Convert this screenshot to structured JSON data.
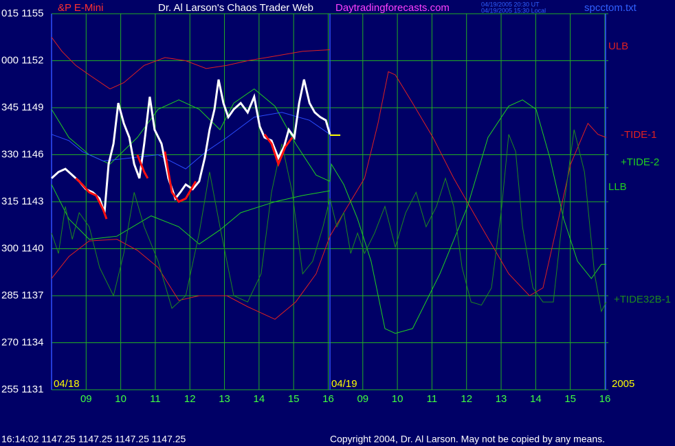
{
  "header": {
    "instrument": "&P E-Mini",
    "title": "Dr. Al Larson's Chaos Trader Web",
    "site": "Daytradingforecasts.com",
    "timestamp_ut": "04/19/2005 20:30 UT",
    "timestamp_local": "04/19/2005 15:30 Local",
    "file": "spcctom.txt"
  },
  "footer": {
    "status": "16:14:02  1147.25 1147.25 1147.25 1147.25",
    "copyright": "Copyright 2004, Dr. Al Larson. May not be copied by any means."
  },
  "chart_data": {
    "type": "line",
    "grid": true,
    "xlim": [
      8,
      24.1
    ],
    "ylim": [
      1131,
      1155
    ],
    "yticks": [
      {
        "value": 1155,
        "label": "015 1155"
      },
      {
        "value": 1152,
        "label": "000 1152"
      },
      {
        "value": 1149,
        "label": "345 1149"
      },
      {
        "value": 1146,
        "label": "330 1146"
      },
      {
        "value": 1143,
        "label": "315 1143"
      },
      {
        "value": 1140,
        "label": "300 1140"
      },
      {
        "value": 1137,
        "label": "285 1137"
      },
      {
        "value": 1134,
        "label": "270 1134"
      },
      {
        "value": 1131,
        "label": "255 1131"
      }
    ],
    "xticks": [
      {
        "value": 9,
        "label": "09"
      },
      10,
      11,
      12,
      13,
      14,
      15,
      16,
      {
        "value": 17,
        "label": "09"
      },
      {
        "value": 18,
        "label": "10"
      },
      {
        "value": 19,
        "label": "11"
      },
      {
        "value": 20,
        "label": "12"
      },
      {
        "value": 21,
        "label": "13"
      },
      {
        "value": 22,
        "label": "14"
      },
      {
        "value": 23,
        "label": "15"
      },
      {
        "value": 24,
        "label": "16"
      }
    ],
    "day_breaks": [
      8,
      16.05,
      24.02
    ],
    "annotations": [
      "04/18",
      "04/19",
      "2005"
    ],
    "series": [
      {
        "name": "ULB",
        "color": "#e02020",
        "x": [
          8.0,
          8.3,
          8.7,
          9.09,
          9.69,
          10.09,
          10.68,
          11.28,
          11.88,
          12.47,
          13.07,
          13.67,
          14.46,
          15.26,
          16.05
        ],
        "values": [
          1153.5,
          1152.6,
          1151.7,
          1151.1,
          1150.2,
          1150.6,
          1151.7,
          1152.2,
          1152.0,
          1151.5,
          1151.7,
          1152.0,
          1152.3,
          1152.6,
          1152.7
        ]
      },
      {
        "name": "-TIDE-1",
        "color": "#e02020",
        "x": [
          8.0,
          8.5,
          9.09,
          9.89,
          10.48,
          11.08,
          11.68,
          12.27,
          13.07,
          13.67,
          14.46,
          15.06,
          15.65,
          16.05,
          16.45,
          17.05,
          17.44,
          17.74,
          17.94,
          18.44,
          19.03,
          19.63,
          20.43,
          21.22,
          21.82,
          22.21,
          22.61,
          23.01,
          23.51,
          23.8,
          24.04
        ],
        "values": [
          1138.1,
          1139.5,
          1140.5,
          1140.6,
          1139.9,
          1138.8,
          1136.7,
          1137.0,
          1137.0,
          1136.3,
          1135.5,
          1136.6,
          1138.4,
          1140.8,
          1142.3,
          1144.5,
          1148.0,
          1151.3,
          1151.1,
          1149.3,
          1147.1,
          1144.5,
          1141.4,
          1138.4,
          1137.0,
          1137.5,
          1141.4,
          1145.4,
          1148.0,
          1147.3,
          1147.1
        ]
      },
      {
        "name": "+TIDE-2",
        "color": "#20d020",
        "x": [
          8.0,
          8.5,
          9.09,
          9.69,
          10.48,
          11.08,
          11.68,
          12.27,
          12.87,
          13.27,
          13.86,
          14.46,
          15.06,
          15.65,
          16.05,
          16.09,
          16.45,
          16.85,
          17.24,
          17.64,
          17.94,
          18.44,
          19.23,
          20.03,
          20.62,
          21.22,
          21.62,
          22.01,
          22.41,
          22.81,
          23.21,
          23.61,
          23.9,
          24.04
        ],
        "values": [
          1148.9,
          1147.1,
          1146.0,
          1145.4,
          1147.1,
          1148.9,
          1149.5,
          1148.9,
          1147.6,
          1149.3,
          1150.2,
          1149.1,
          1146.7,
          1144.7,
          1144.3,
          1145.4,
          1144.1,
          1141.9,
          1139.2,
          1134.9,
          1134.6,
          1134.9,
          1138.4,
          1142.7,
          1147.1,
          1149.1,
          1149.5,
          1148.9,
          1145.8,
          1141.9,
          1139.2,
          1138.1,
          1139.0,
          1139.0
        ]
      },
      {
        "name": "LLB",
        "color": "#20d020",
        "x": [
          8.0,
          8.5,
          9.09,
          9.89,
          10.88,
          11.68,
          12.27,
          12.87,
          13.47,
          14.46,
          15.26,
          16.05
        ],
        "values": [
          1144.1,
          1141.9,
          1140.6,
          1140.8,
          1142.1,
          1141.4,
          1140.3,
          1141.2,
          1142.3,
          1143.0,
          1143.4,
          1143.7
        ]
      },
      {
        "name": "+TIDE32B-1",
        "color": "#1e8a1e",
        "x": [
          8.0,
          8.2,
          8.4,
          8.6,
          8.8,
          9.09,
          9.39,
          9.79,
          10.09,
          10.39,
          10.68,
          11.08,
          11.48,
          11.88,
          12.27,
          12.57,
          12.87,
          13.27,
          13.67,
          14.06,
          14.36,
          14.66,
          14.96,
          15.26,
          15.55,
          15.85,
          16.05,
          16.25,
          16.45,
          16.65,
          16.85,
          17.05,
          17.34,
          17.64,
          17.94,
          18.24,
          18.54,
          18.83,
          19.13,
          19.39,
          19.63,
          19.87,
          20.13,
          20.43,
          20.72,
          21.02,
          21.22,
          21.42,
          21.62,
          21.92,
          22.21,
          22.51,
          22.81,
          23.11,
          23.41,
          23.7,
          23.9,
          24.04
        ],
        "values": [
          1141.0,
          1139.7,
          1142.7,
          1140.6,
          1142.3,
          1141.4,
          1138.8,
          1137.0,
          1139.7,
          1143.6,
          1141.4,
          1139.2,
          1136.2,
          1137.0,
          1141.0,
          1144.9,
          1141.4,
          1137.0,
          1136.6,
          1138.4,
          1143.6,
          1146.7,
          1143.6,
          1138.4,
          1139.2,
          1141.4,
          1143.2,
          1141.4,
          1142.3,
          1139.7,
          1141.0,
          1139.7,
          1141.0,
          1142.7,
          1140.1,
          1142.3,
          1143.6,
          1141.4,
          1142.7,
          1144.5,
          1142.7,
          1138.8,
          1136.6,
          1136.4,
          1137.5,
          1142.7,
          1147.3,
          1146.2,
          1141.4,
          1137.5,
          1136.6,
          1136.6,
          1142.7,
          1147.6,
          1144.9,
          1138.4,
          1136.0,
          1136.6
        ]
      },
      {
        "color": "#2a4cff",
        "x": [
          8.0,
          8.5,
          8.89,
          9.49,
          10.29,
          11.08,
          11.88,
          12.47,
          13.07,
          13.86,
          14.66,
          15.46,
          16.05
        ],
        "values": [
          1147.3,
          1146.9,
          1146.2,
          1145.6,
          1145.8,
          1146.0,
          1145.1,
          1146.2,
          1147.1,
          1148.4,
          1148.7,
          1148.2,
          1147.3
        ]
      },
      {
        "color": "#ffffff",
        "x": [
          8.0,
          8.2,
          8.4,
          8.6,
          8.8,
          8.99,
          9.19,
          9.39,
          9.53,
          9.65,
          9.79,
          9.93,
          10.09,
          10.25,
          10.39,
          10.54,
          10.68,
          10.84,
          10.98,
          11.18,
          11.38,
          11.58,
          11.72,
          11.88,
          12.08,
          12.27,
          12.43,
          12.57,
          12.71,
          12.83,
          12.97,
          13.11,
          13.27,
          13.47,
          13.67,
          13.86,
          14.02,
          14.16,
          14.36,
          14.56,
          14.72,
          14.86,
          15.02,
          15.16,
          15.3,
          15.46,
          15.61,
          15.77,
          15.93,
          16.05
        ],
        "values": [
          1144.5,
          1144.9,
          1145.1,
          1144.7,
          1144.3,
          1143.8,
          1143.6,
          1143.2,
          1142.3,
          1145.4,
          1146.7,
          1149.3,
          1148.0,
          1147.1,
          1145.4,
          1144.5,
          1146.7,
          1149.7,
          1147.6,
          1146.7,
          1144.5,
          1143.2,
          1143.6,
          1144.1,
          1143.8,
          1144.3,
          1145.8,
          1147.6,
          1148.9,
          1150.8,
          1149.3,
          1148.4,
          1148.9,
          1149.3,
          1148.7,
          1149.7,
          1147.8,
          1147.1,
          1146.9,
          1145.8,
          1146.5,
          1147.6,
          1147.1,
          1149.3,
          1150.8,
          1149.3,
          1148.7,
          1148.4,
          1148.2,
          1147.3
        ]
      },
      {
        "color": "#ff1010",
        "x": [
          8.7,
          8.89,
          9.09,
          9.29,
          9.49,
          9.59,
          9.7,
          10.48,
          10.68,
          10.78,
          11.0,
          11.28,
          11.48,
          11.68,
          11.88,
          12.17,
          13.0,
          14.16,
          14.36,
          14.56,
          14.76,
          14.96
        ],
        "values": [
          1144.5,
          1144.1,
          1143.6,
          1143.4,
          1142.5,
          1141.9,
          null,
          1146.0,
          1144.9,
          1144.5,
          null,
          1146.2,
          1143.6,
          1143.0,
          1143.2,
          1144.3,
          null,
          1147.3,
          1146.7,
          1145.4,
          1146.5,
          1147.1
        ]
      },
      {
        "color": "#ffff00",
        "x": [
          16.05,
          16.35
        ],
        "values": [
          1147.25,
          1147.25
        ]
      }
    ]
  }
}
